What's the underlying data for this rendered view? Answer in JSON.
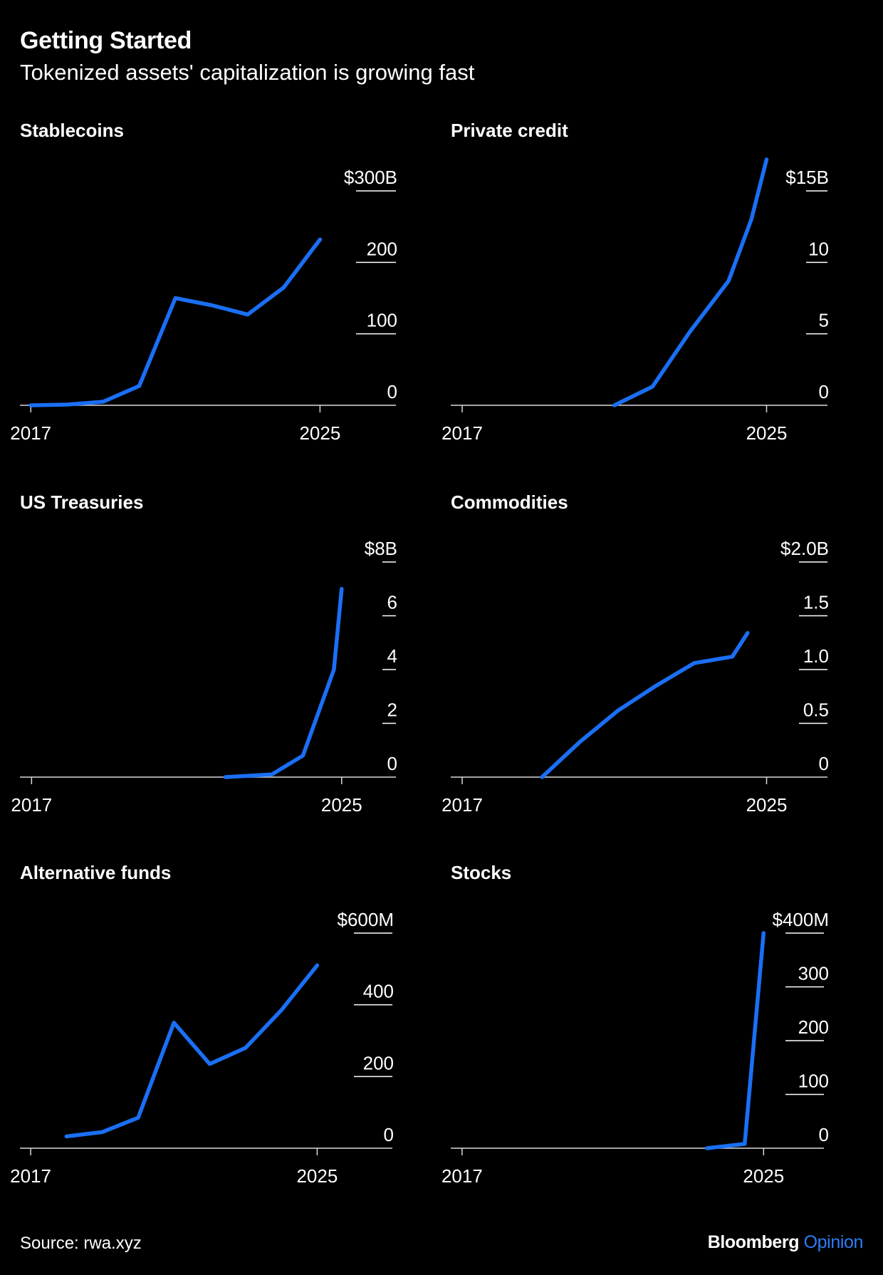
{
  "header": {
    "title": "Getting Started",
    "subtitle": "Tokenized assets' capitalization is growing fast"
  },
  "footer": {
    "source": "Source: rwa.xyz",
    "brand": "Bloomberg",
    "brand_suffix": "Opinion"
  },
  "colors": {
    "background": "#000000",
    "line": "#1a6ff5",
    "text": "#ffffff"
  },
  "chart_data": [
    {
      "type": "line",
      "title": "Stablecoins",
      "x": [
        2017,
        2018,
        2019,
        2020,
        2021,
        2022,
        2023,
        2024,
        2025
      ],
      "values": [
        0,
        1,
        5,
        27,
        150,
        140,
        127,
        165,
        232
      ],
      "ylim": [
        0,
        300
      ],
      "yticks": [
        0,
        100,
        200,
        300
      ],
      "ytick_labels": [
        "0",
        "100",
        "200",
        "$300B"
      ],
      "xlim": [
        2016.7,
        2027.1
      ],
      "xticks": [
        2017,
        2025
      ],
      "xtick_labels": [
        "2017",
        "2025"
      ]
    },
    {
      "type": "line",
      "title": "Private credit",
      "x": [
        2021,
        2022,
        2023,
        2024,
        2024.6,
        2025.0
      ],
      "values": [
        0,
        1.3,
        5.2,
        8.7,
        13,
        17.2
      ],
      "ylim": [
        0,
        15
      ],
      "yticks": [
        0,
        5,
        10,
        15
      ],
      "ytick_labels": [
        "0",
        "5",
        "10",
        "$15B"
      ],
      "xlim": [
        2016.7,
        2026.6
      ],
      "xticks": [
        2017,
        2025
      ],
      "xtick_labels": [
        "2017",
        "2025"
      ]
    },
    {
      "type": "line",
      "title": "US Treasuries",
      "x": [
        2022,
        2023.2,
        2024,
        2024.8,
        2025
      ],
      "values": [
        0,
        0.1,
        0.8,
        4.0,
        7.0
      ],
      "ylim": [
        0,
        8
      ],
      "yticks": [
        0,
        2,
        4,
        6,
        8
      ],
      "ytick_labels": [
        "0",
        "2",
        "4",
        "6",
        "$8B"
      ],
      "xlim": [
        2016.7,
        2026.4
      ],
      "xticks": [
        2017,
        2025
      ],
      "xtick_labels": [
        "2017",
        "2025"
      ]
    },
    {
      "type": "line",
      "title": "Commodities",
      "x": [
        2019.1,
        2020.1,
        2021.1,
        2022.1,
        2023.1,
        2024.1,
        2024.5
      ],
      "values": [
        0,
        0.33,
        0.62,
        0.85,
        1.06,
        1.12,
        1.34
      ],
      "ylim": [
        0,
        2
      ],
      "yticks": [
        0,
        0.5,
        1.0,
        1.5,
        2.0
      ],
      "ytick_labels": [
        "0",
        "0.5",
        "1.0",
        "1.5",
        "$2.0B"
      ],
      "xlim": [
        2016.7,
        2026.6
      ],
      "xticks": [
        2017,
        2025
      ],
      "xtick_labels": [
        "2017",
        "2025"
      ]
    },
    {
      "type": "line",
      "title": "Alternative funds",
      "x": [
        2018,
        2019,
        2020,
        2021,
        2022,
        2023,
        2024,
        2025
      ],
      "values": [
        33,
        45,
        85,
        350,
        235,
        280,
        385,
        510
      ],
      "ylim": [
        0,
        600
      ],
      "yticks": [
        0,
        200,
        400,
        600
      ],
      "ytick_labels": [
        "0",
        "200",
        "400",
        "$600M"
      ],
      "xlim": [
        2016.7,
        2027.1
      ],
      "xticks": [
        2017,
        2025
      ],
      "xtick_labels": [
        "2017",
        "2025"
      ]
    },
    {
      "type": "line",
      "title": "Stocks",
      "x": [
        2023.5,
        2024.5,
        2025
      ],
      "values": [
        0,
        8,
        400
      ],
      "ylim": [
        0,
        400
      ],
      "yticks": [
        0,
        100,
        200,
        300,
        400
      ],
      "ytick_labels": [
        "0",
        "100",
        "200",
        "300",
        "$400M"
      ],
      "xlim": [
        2016.7,
        2026.6
      ],
      "xticks": [
        2017,
        2025
      ],
      "xtick_labels": [
        "2017",
        "2025"
      ]
    }
  ]
}
